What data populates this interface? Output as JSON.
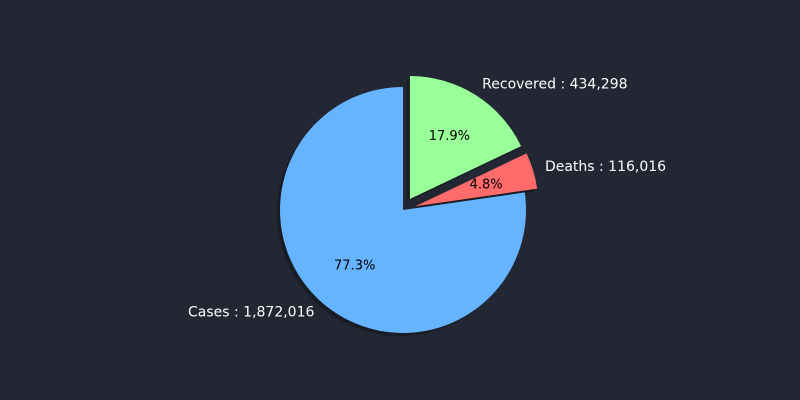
{
  "chart_data": {
    "type": "pie",
    "slices": [
      {
        "name": "Recovered",
        "value": 434298,
        "label": "Recovered : 434,298",
        "percent_label": "17.9%",
        "color": "#99ff99",
        "exploded": true
      },
      {
        "name": "Deaths",
        "value": 116016,
        "label": "Deaths : 116,016",
        "percent_label": "4.8%",
        "color": "#ff6b6b",
        "exploded": true
      },
      {
        "name": "Cases",
        "value": 1872016,
        "label": "Cases : 1,872,016",
        "percent_label": "77.3%",
        "color": "#66b3ff",
        "exploded": false
      }
    ],
    "start_angle_deg": 90,
    "direction": "clockwise",
    "shadow": true,
    "background_color": "#222733",
    "label_color": "#ffffff",
    "percent_label_color": "#000000"
  }
}
